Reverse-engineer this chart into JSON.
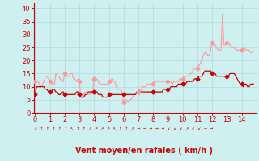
{
  "xlabel": "Vent moyen/en rafales ( km/h )",
  "bg_color": "#cff0f0",
  "grid_color": "#b8e0e0",
  "line_color_rafales": "#ff9999",
  "line_color_moyen": "#cc0000",
  "xlim": [
    -0.1,
    15.0
  ],
  "ylim": [
    0,
    42
  ],
  "yticks": [
    0,
    5,
    10,
    15,
    20,
    25,
    30,
    35,
    40
  ],
  "xticks": [
    0,
    1,
    2,
    3,
    4,
    5,
    6,
    7,
    8,
    9,
    10,
    11,
    12,
    13,
    14
  ],
  "wind_avg": [
    7,
    10,
    10,
    10,
    10,
    10,
    10,
    9,
    9,
    8,
    8,
    8,
    9,
    9,
    8,
    8,
    7,
    7,
    8,
    8,
    7,
    7,
    7,
    7,
    7,
    7,
    7,
    7,
    8,
    8,
    7,
    6,
    6,
    6,
    7,
    7,
    8,
    8,
    8,
    8,
    8,
    8,
    8,
    7,
    7,
    7,
    6,
    6,
    6,
    6,
    7,
    7,
    7,
    7,
    7,
    7,
    7,
    7,
    7,
    7,
    7,
    7,
    7,
    7,
    7,
    7,
    7,
    7,
    7,
    8,
    8,
    8,
    8,
    8,
    8,
    8,
    8,
    8,
    8,
    8,
    8,
    8,
    8,
    8,
    8,
    8,
    8,
    9,
    9,
    9,
    9,
    9,
    10,
    10,
    10,
    10,
    10,
    11,
    11,
    11,
    11,
    11,
    11,
    12,
    12,
    12,
    12,
    12,
    13,
    13,
    13,
    14,
    14,
    14,
    15,
    16,
    16,
    16,
    16,
    16,
    15,
    15,
    15,
    14,
    14,
    14,
    14,
    14,
    14,
    14,
    14,
    14,
    15,
    15,
    15,
    15,
    14,
    13,
    12,
    11,
    11,
    10,
    11,
    11,
    10,
    10,
    11,
    11,
    11
  ],
  "wind_rafales": [
    12,
    12,
    12,
    11,
    10,
    11,
    12,
    14,
    14,
    13,
    12,
    12,
    11,
    11,
    15,
    14,
    14,
    13,
    12,
    12,
    15,
    15,
    14,
    14,
    15,
    15,
    13,
    13,
    12,
    13,
    12,
    6,
    7,
    7,
    8,
    8,
    7,
    7,
    7,
    8,
    13,
    12,
    13,
    12,
    11,
    11,
    11,
    11,
    11,
    11,
    12,
    12,
    13,
    12,
    12,
    10,
    9,
    9,
    9,
    8,
    4,
    5,
    5,
    4,
    5,
    5,
    6,
    7,
    7,
    8,
    8,
    8,
    9,
    10,
    10,
    10,
    11,
    11,
    11,
    11,
    11,
    12,
    12,
    12,
    12,
    12,
    12,
    12,
    12,
    12,
    12,
    12,
    12,
    11,
    12,
    12,
    12,
    12,
    13,
    13,
    13,
    14,
    14,
    14,
    14,
    15,
    15,
    16,
    17,
    17,
    17,
    18,
    19,
    20,
    22,
    23,
    23,
    22,
    22,
    24,
    27,
    27,
    26,
    25,
    24,
    24,
    24,
    38,
    26,
    26,
    27,
    27,
    26,
    25,
    25,
    25,
    24,
    24,
    24,
    24,
    24,
    24,
    25,
    24,
    24,
    24,
    23,
    23,
    24
  ],
  "arrows": [
    "↗",
    "↑",
    "↑",
    "↑",
    "↑",
    "↑",
    "↖",
    "↑",
    "↑",
    "↗",
    "↗",
    "↗",
    "↗",
    "↖",
    "↑",
    "↑",
    "↗",
    "→",
    "→",
    "→",
    "→",
    "→",
    "↙",
    "↙",
    "↙",
    "↗",
    "↙",
    "↙",
    "→",
    "→"
  ],
  "marker_indices": [
    0,
    10,
    20,
    30,
    40,
    50,
    60,
    70,
    80,
    90,
    100,
    110,
    120,
    130,
    140
  ]
}
